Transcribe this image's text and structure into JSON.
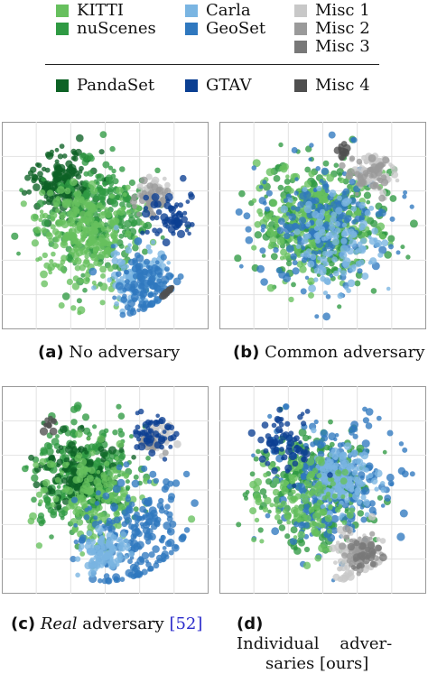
{
  "legend": {
    "items": [
      {
        "label": "KITTI",
        "color": "#67c05e"
      },
      {
        "label": "nuScenes",
        "color": "#2f9a43"
      },
      {
        "label": "PandaSet",
        "color": "#0d6225"
      },
      {
        "label": "Carla",
        "color": "#7ab5e2"
      },
      {
        "label": "GeoSet",
        "color": "#2f78bf"
      },
      {
        "label": "GTAV",
        "color": "#0b3f92"
      },
      {
        "label": "Misc 1",
        "color": "#c8c8c8"
      },
      {
        "label": "Misc 2",
        "color": "#9a9a9a"
      },
      {
        "label": "Misc 3",
        "color": "#787878"
      },
      {
        "label": "Misc 4",
        "color": "#4f4f4f"
      }
    ]
  },
  "captions": [
    {
      "tag": "(a)",
      "text": "No adversary"
    },
    {
      "tag": "(b)",
      "text": "Common adversary"
    },
    {
      "tag": "(c)",
      "italic": "Real",
      "text": " adversary ",
      "cite": "[52]"
    },
    {
      "tag": "(d)",
      "text": "Individual    adver-",
      "text2": "saries [ours]"
    }
  ],
  "chart_data": [
    {
      "type": "scatter",
      "subtitle": "No adversary",
      "series": [
        "KITTI",
        "nuScenes",
        "PandaSet",
        "Carla",
        "GeoSet",
        "GTAV",
        "Misc 1",
        "Misc 2",
        "Misc 3",
        "Misc 4"
      ],
      "clusters": [
        {
          "series": "PandaSet",
          "x": -0.45,
          "y": 0.45,
          "spread": 0.35,
          "n": 180
        },
        {
          "series": "nuScenes",
          "x": -0.1,
          "y": 0.1,
          "spread": 0.6,
          "n": 260
        },
        {
          "series": "KITTI",
          "x": -0.25,
          "y": -0.1,
          "spread": 0.55,
          "n": 260
        },
        {
          "series": "Carla",
          "x": 0.35,
          "y": -0.55,
          "spread": 0.3,
          "n": 120
        },
        {
          "series": "GeoSet",
          "x": 0.45,
          "y": -0.65,
          "spread": 0.35,
          "n": 120
        },
        {
          "series": "Misc 1",
          "x": 0.55,
          "y": 0.35,
          "spread": 0.15,
          "n": 60
        },
        {
          "series": "Misc 2",
          "x": 0.5,
          "y": 0.3,
          "spread": 0.15,
          "n": 40
        },
        {
          "series": "GTAV",
          "x": 0.7,
          "y": 0.1,
          "spread": 0.25,
          "n": 60
        },
        {
          "series": "Misc 4",
          "x": 0.7,
          "y": -0.75,
          "spread": 0.08,
          "n": 14
        }
      ]
    },
    {
      "type": "scatter",
      "subtitle": "Common adversary",
      "series": [
        "KITTI",
        "nuScenes",
        "PandaSet",
        "Carla",
        "GeoSet",
        "GTAV",
        "Misc 1",
        "Misc 2",
        "Misc 3",
        "Misc 4"
      ],
      "clusters": [
        {
          "series": "nuScenes",
          "x": 0.0,
          "y": 0.0,
          "spread": 0.65,
          "n": 300
        },
        {
          "series": "KITTI",
          "x": -0.1,
          "y": 0.05,
          "spread": 0.6,
          "n": 240
        },
        {
          "series": "GeoSet",
          "x": 0.0,
          "y": 0.0,
          "spread": 0.7,
          "n": 200
        },
        {
          "series": "Carla",
          "x": 0.15,
          "y": -0.2,
          "spread": 0.5,
          "n": 120
        },
        {
          "series": "Misc 1",
          "x": 0.55,
          "y": 0.6,
          "spread": 0.2,
          "n": 70
        },
        {
          "series": "Misc 2",
          "x": 0.5,
          "y": 0.55,
          "spread": 0.2,
          "n": 40
        },
        {
          "series": "Misc 4",
          "x": 0.2,
          "y": 0.8,
          "spread": 0.08,
          "n": 14
        }
      ]
    },
    {
      "type": "scatter",
      "subtitle": "Real adversary",
      "series": [
        "KITTI",
        "nuScenes",
        "PandaSet",
        "Carla",
        "GeoSet",
        "GTAV",
        "Misc 1",
        "Misc 2",
        "Misc 3",
        "Misc 4"
      ],
      "clusters": [
        {
          "series": "nuScenes",
          "x": -0.2,
          "y": 0.15,
          "spread": 0.55,
          "n": 300
        },
        {
          "series": "PandaSet",
          "x": -0.3,
          "y": 0.2,
          "spread": 0.4,
          "n": 120
        },
        {
          "series": "KITTI",
          "x": -0.1,
          "y": -0.1,
          "spread": 0.5,
          "n": 160
        },
        {
          "series": "GeoSet",
          "x": 0.3,
          "y": -0.5,
          "spread": 0.6,
          "n": 220
        },
        {
          "series": "Carla",
          "x": 0.0,
          "y": -0.65,
          "spread": 0.25,
          "n": 100
        },
        {
          "series": "Misc 1",
          "x": 0.55,
          "y": 0.55,
          "spread": 0.15,
          "n": 60
        },
        {
          "series": "Misc 2",
          "x": 0.5,
          "y": 0.5,
          "spread": 0.12,
          "n": 30
        },
        {
          "series": "GTAV",
          "x": 0.5,
          "y": 0.6,
          "spread": 0.25,
          "n": 50
        },
        {
          "series": "Misc 4",
          "x": -0.6,
          "y": 0.7,
          "spread": 0.08,
          "n": 12
        }
      ]
    },
    {
      "type": "scatter",
      "subtitle": "Individual adversaries",
      "series": [
        "KITTI",
        "nuScenes",
        "PandaSet",
        "Carla",
        "GeoSet",
        "GTAV",
        "Misc 1",
        "Misc 2",
        "Misc 3",
        "Misc 4"
      ],
      "clusters": [
        {
          "series": "nuScenes",
          "x": -0.1,
          "y": 0.0,
          "spread": 0.6,
          "n": 260
        },
        {
          "series": "GeoSet",
          "x": 0.1,
          "y": 0.1,
          "spread": 0.7,
          "n": 240
        },
        {
          "series": "Carla",
          "x": 0.2,
          "y": 0.1,
          "spread": 0.3,
          "n": 140
        },
        {
          "series": "KITTI",
          "x": -0.2,
          "y": -0.1,
          "spread": 0.5,
          "n": 120
        },
        {
          "series": "Misc 1",
          "x": 0.35,
          "y": -0.7,
          "spread": 0.25,
          "n": 90
        },
        {
          "series": "Misc 2",
          "x": 0.4,
          "y": -0.65,
          "spread": 0.2,
          "n": 60
        },
        {
          "series": "Misc 3",
          "x": 0.45,
          "y": -0.7,
          "spread": 0.15,
          "n": 30
        },
        {
          "series": "GTAV",
          "x": -0.4,
          "y": 0.5,
          "spread": 0.3,
          "n": 60
        }
      ]
    }
  ]
}
